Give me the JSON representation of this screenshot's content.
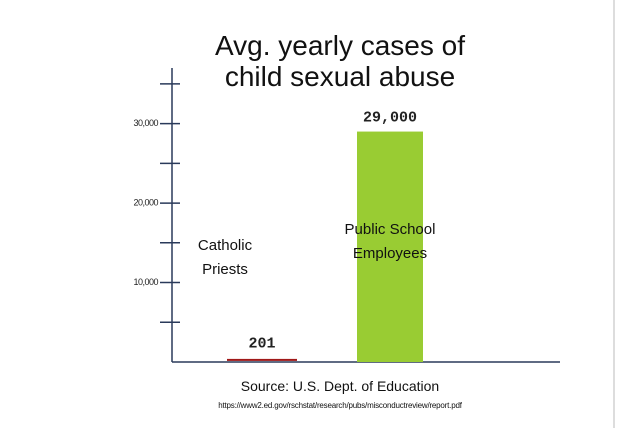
{
  "chart_data": {
    "type": "bar",
    "title": "Avg. yearly cases of child sexual abuse",
    "categories": [
      "Catholic Priests",
      "Public School Employees"
    ],
    "values": [
      201,
      29000
    ],
    "value_labels": [
      "201",
      "29,000"
    ],
    "colors": [
      "#a01818",
      "#99cc33"
    ],
    "ylim": [
      0,
      37000
    ],
    "yticks": [
      {
        "value": 10000,
        "label": "10,000"
      },
      {
        "value": 20000,
        "label": "20,000"
      },
      {
        "value": 30000,
        "label": "30,000"
      }
    ],
    "minor_yticks": [
      5000,
      15000,
      25000,
      35000
    ],
    "source": "Source: U.S. Dept. of Education",
    "url": "https://www2.ed.gov/rschstat/research/pubs/misconductreview/report.pdf"
  }
}
